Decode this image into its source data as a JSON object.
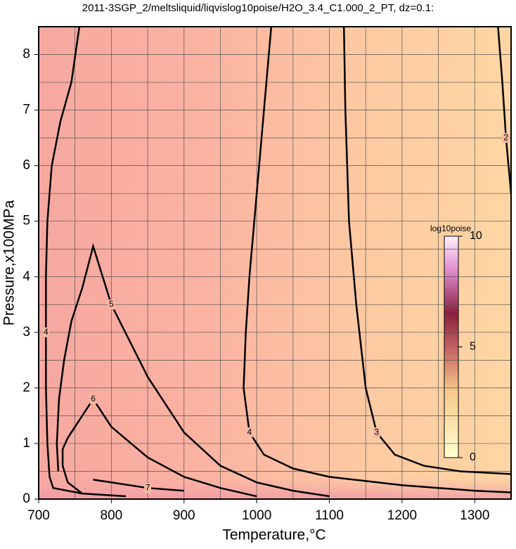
{
  "chart_data": {
    "type": "contour",
    "title": "2011-3SGP_2/meltsliquid/liqvislog10poise/H2O_3.4_C1.000_2_PT, dz=0.1:",
    "x_label": "Temperature,°C",
    "y_label": "Pressure,x100MPa",
    "xlim": [
      700,
      1350
    ],
    "ylim": [
      0,
      8.5
    ],
    "xticks": [
      700,
      800,
      900,
      1000,
      1100,
      1200,
      1300
    ],
    "yticks": [
      0,
      1,
      2,
      3,
      4,
      5,
      6,
      7,
      8
    ],
    "xminorticks": [
      750,
      850,
      950,
      1050,
      1150,
      1250
    ],
    "yminorticks": [
      0.5,
      1.5,
      2.5,
      3.5,
      4.5,
      5.5,
      6.5,
      7.5
    ],
    "grid": true,
    "series": [
      {
        "name": "2",
        "color": "#000000",
        "x": [
          1332,
          1338,
          1343,
          1350
        ],
        "values": [
          8.5,
          7.5,
          6.5,
          5.5
        ]
      },
      {
        "name": "3",
        "color": "#000000",
        "x": [
          1120,
          1122,
          1127,
          1137,
          1150,
          1165,
          1190,
          1230,
          1280,
          1350
        ],
        "values": [
          8.5,
          7,
          5,
          3.5,
          2,
          1.2,
          0.8,
          0.6,
          0.5,
          0.45
        ]
      },
      {
        "name": "4",
        "color": "#000000",
        "x": [
          1020,
          1010,
          1000,
          990,
          985,
          982,
          990,
          1010,
          1050,
          1100,
          1200,
          1300,
          1350
        ],
        "values": [
          8.5,
          7,
          5.5,
          4,
          3,
          2,
          1.2,
          0.8,
          0.55,
          0.4,
          0.25,
          0.15,
          0.12
        ]
      },
      {
        "name": "4",
        "color": "#000000",
        "x": [
          756,
          745,
          730,
          718,
          712,
          710,
          710,
          710,
          712,
          715,
          720,
          760,
          820
        ],
        "values": [
          8.5,
          7.5,
          6.8,
          6,
          5,
          4,
          3,
          2,
          1,
          0.4,
          0.2,
          0.1,
          0.05
        ]
      },
      {
        "name": "5",
        "color": "#000000",
        "x": [
          727,
          725,
          728,
          735,
          745,
          760,
          775,
          800,
          850,
          900,
          950,
          1000,
          1050,
          1100
        ],
        "values": [
          0.5,
          1,
          1.8,
          2.5,
          3.2,
          3.8,
          4.55,
          3.5,
          2.2,
          1.2,
          0.6,
          0.3,
          0.15,
          0.05
        ]
      },
      {
        "name": "6",
        "color": "#000000",
        "x": [
          760,
          740,
          733,
          733,
          740,
          775,
          800,
          850,
          900,
          950,
          1000
        ],
        "values": [
          0.1,
          0.3,
          0.6,
          0.9,
          1.1,
          1.8,
          1.3,
          0.75,
          0.4,
          0.2,
          0.05
        ]
      },
      {
        "name": "7",
        "color": "#000000",
        "x": [
          775,
          800,
          850,
          900
        ],
        "values": [
          0.35,
          0.3,
          0.2,
          0.15
        ]
      }
    ],
    "colorbar": {
      "label": "log10poise",
      "lim": [
        0,
        10
      ],
      "ticks": [
        0,
        5,
        10
      ]
    }
  }
}
